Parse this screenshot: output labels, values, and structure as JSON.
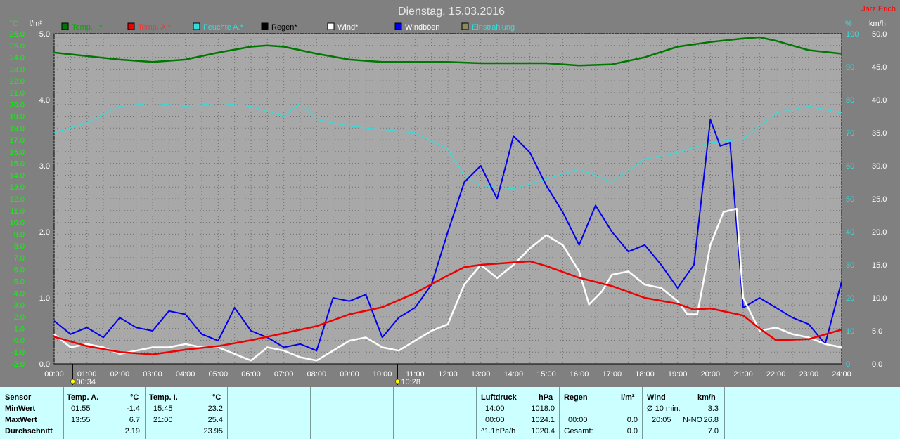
{
  "header": {
    "title": "Dienstag, 15.03.2016",
    "author": "Jarz Erich"
  },
  "legend": [
    {
      "name": "Temp. I.*",
      "color": "#007700",
      "text_color": "#00aa00"
    },
    {
      "name": "Temp. A.*",
      "color": "#ee0000",
      "text_color": "#ff3030"
    },
    {
      "name": "Feuchte A.*",
      "color": "#33dddd",
      "text_color": "#33dddd"
    },
    {
      "name": "Regen*",
      "color": "#000000",
      "text_color": "#000000"
    },
    {
      "name": "Wind*",
      "color": "#ffffff",
      "text_color": "#ffffff"
    },
    {
      "name": "Windböen",
      "color": "#0000ee",
      "text_color": "#ffffff"
    },
    {
      "name": "Einstrahlung",
      "color": "#8b8b5a",
      "text_color": "#33dddd"
    }
  ],
  "axes": {
    "temp_unit": "°C",
    "rain_unit": "l/m²",
    "hum_unit": "%",
    "wind_unit": "km/h",
    "temp_ticks": [
      "26.0",
      "25.0",
      "24.0",
      "23.0",
      "22.0",
      "21.0",
      "20.0",
      "19.0",
      "18.0",
      "17.0",
      "16.0",
      "15.0",
      "14.0",
      "13.0",
      "12.0",
      "11.0",
      "10.0",
      "9.0",
      "8.0",
      "7.0",
      "6.0",
      "5.0",
      "4.0",
      "3.0",
      "2.0",
      "1.0",
      "0.0",
      "-1.0",
      "-2.0"
    ],
    "rain_ticks": [
      "5.0",
      "4.0",
      "3.0",
      "2.0",
      "1.0",
      "0.0"
    ],
    "hum_ticks": [
      "100",
      "90",
      "80",
      "70",
      "60",
      "50",
      "40",
      "30",
      "20",
      "10",
      "0"
    ],
    "wind_ticks": [
      "50.0",
      "45.0",
      "40.0",
      "35.0",
      "30.0",
      "25.0",
      "20.0",
      "15.0",
      "10.0",
      "5.0",
      "0.0"
    ],
    "time_ticks": [
      "00:00",
      "01:00",
      "02:00",
      "03:00",
      "04:00",
      "05:00",
      "06:00",
      "07:00",
      "08:00",
      "09:00",
      "10:00",
      "11:00",
      "12:00",
      "13:00",
      "14:00",
      "15:00",
      "16:00",
      "17:00",
      "18:00",
      "19:00",
      "20:00",
      "21:00",
      "22:00",
      "23:00",
      "24:00"
    ],
    "sunrise": "00:34",
    "sunset": "10:28"
  },
  "chart_data": {
    "type": "line",
    "title": "Dienstag, 15.03.2016",
    "x_unit": "hour of day",
    "xlim": [
      0,
      24
    ],
    "temp_ylim": [
      -2,
      26
    ],
    "rain_ylim": [
      0,
      5
    ],
    "hum_ylim": [
      0,
      100
    ],
    "wind_ylim": [
      0,
      50
    ],
    "grid": true,
    "series": [
      {
        "name": "Temp. I.*",
        "axis": "temp",
        "color": "#007700",
        "x": [
          0,
          1,
          2,
          3,
          4,
          5,
          6,
          6.5,
          7,
          8,
          9,
          10,
          11,
          12,
          13,
          14,
          15,
          16,
          17,
          18,
          19,
          20,
          21,
          21.5,
          22,
          23,
          24
        ],
        "y": [
          24.4,
          24.1,
          23.8,
          23.6,
          23.8,
          24.4,
          24.9,
          25.0,
          24.9,
          24.3,
          23.8,
          23.6,
          23.6,
          23.6,
          23.5,
          23.5,
          23.5,
          23.3,
          23.4,
          24.0,
          24.9,
          25.3,
          25.6,
          25.7,
          25.4,
          24.6,
          24.3
        ]
      },
      {
        "name": "Temp. A.*",
        "axis": "temp",
        "color": "#ee0000",
        "x": [
          0,
          1,
          2,
          3,
          4,
          5,
          6,
          7,
          8,
          9,
          10,
          10.5,
          11,
          12,
          12.5,
          13,
          14,
          14.5,
          15,
          16,
          17,
          18,
          19,
          19.5,
          20,
          21,
          21.5,
          22,
          23,
          24
        ],
        "y": [
          0.3,
          -0.5,
          -1.0,
          -1.2,
          -0.8,
          -0.5,
          0.0,
          0.6,
          1.2,
          2.2,
          2.8,
          3.4,
          4.0,
          5.5,
          6.2,
          6.4,
          6.6,
          6.7,
          6.3,
          5.3,
          4.6,
          3.6,
          3.1,
          2.6,
          2.7,
          2.1,
          1.0,
          0.0,
          0.1,
          0.9
        ]
      },
      {
        "name": "Feuchte A.*",
        "axis": "hum",
        "color": "#33dddd",
        "x": [
          0,
          1,
          2,
          3,
          4,
          5,
          6,
          7,
          7.5,
          8,
          9,
          10,
          11,
          12,
          12.5,
          13,
          14,
          15,
          16,
          17,
          18,
          19,
          20,
          21,
          22,
          23,
          24
        ],
        "y": [
          70,
          73,
          78,
          79,
          78,
          79,
          78,
          75,
          79,
          74,
          72,
          71,
          70,
          65,
          57,
          54,
          53,
          56,
          59,
          55,
          62,
          64,
          67,
          68,
          76,
          78,
          76
        ]
      },
      {
        "name": "Windböen",
        "axis": "wind",
        "color": "#0000ee",
        "x": [
          0,
          0.5,
          1,
          1.5,
          2,
          2.5,
          3,
          3.5,
          4,
          4.5,
          5,
          5.5,
          6,
          6.5,
          7,
          7.5,
          8,
          8.5,
          9,
          9.5,
          10,
          10.5,
          11,
          11.5,
          12,
          12.5,
          13,
          13.5,
          14,
          14.5,
          15,
          15.5,
          16,
          16.5,
          17,
          17.5,
          18,
          18.5,
          19,
          19.5,
          20,
          20.3,
          20.6,
          21,
          21.5,
          22,
          22.5,
          23,
          23.5,
          24
        ],
        "y": [
          6.5,
          4.5,
          5.5,
          4.0,
          7.0,
          5.5,
          5.0,
          8.0,
          7.5,
          4.5,
          3.5,
          8.5,
          5.0,
          4.0,
          2.5,
          3.0,
          2.0,
          10.0,
          9.5,
          10.5,
          4.0,
          7.0,
          8.5,
          12.0,
          20.0,
          27.5,
          30.0,
          25.0,
          34.5,
          32.0,
          27.0,
          23.0,
          18.0,
          24.0,
          20.0,
          17.0,
          18.0,
          15.0,
          11.5,
          15.0,
          37.0,
          33.0,
          33.5,
          8.5,
          10.0,
          8.5,
          7.0,
          6.0,
          3.0,
          12.5
        ]
      },
      {
        "name": "Wind*",
        "axis": "wind",
        "color": "#ffffff",
        "x": [
          0,
          0.5,
          1,
          1.5,
          2,
          2.5,
          3,
          3.5,
          4,
          4.5,
          5,
          5.5,
          6,
          6.5,
          7,
          7.5,
          8,
          8.5,
          9,
          9.5,
          10,
          10.5,
          11,
          11.5,
          12,
          12.5,
          13,
          13.5,
          14,
          14.5,
          15,
          15.5,
          16,
          16.3,
          16.7,
          17,
          17.5,
          18,
          18.5,
          19,
          19.3,
          19.6,
          20,
          20.4,
          20.8,
          21,
          21.5,
          22,
          22.5,
          23,
          23.5,
          24
        ],
        "y": [
          4.5,
          2.5,
          3.0,
          2.5,
          1.5,
          2.0,
          2.5,
          2.5,
          3.0,
          2.5,
          2.5,
          1.5,
          0.5,
          2.5,
          2.0,
          1.0,
          0.5,
          2.0,
          3.5,
          4.0,
          2.5,
          2.0,
          3.5,
          5.0,
          6.0,
          12.0,
          15.0,
          13.0,
          15.0,
          17.5,
          19.5,
          18.0,
          14.0,
          9.0,
          11.0,
          13.5,
          14.0,
          12.0,
          11.5,
          9.5,
          7.5,
          7.5,
          18.0,
          23.0,
          23.5,
          10.0,
          5.0,
          5.5,
          4.5,
          4.0,
          3.0,
          2.5
        ]
      },
      {
        "name": "Einstrahlung",
        "axis": "hum",
        "color": "#8b8b5a",
        "x": [
          0,
          24
        ],
        "y": [
          99,
          99
        ]
      },
      {
        "name": "Regen*",
        "axis": "rain",
        "color": "#000000",
        "x": [
          0,
          24
        ],
        "y": [
          0,
          0
        ]
      }
    ]
  },
  "panel": {
    "sensor": {
      "title": "Sensor",
      "rows": [
        "MinWert",
        "MaxWert",
        "Durchschnitt"
      ]
    },
    "temp_a": {
      "title": "Temp. A.",
      "unit": "°C",
      "rows": [
        {
          "time": "01:55",
          "value": "-1.4"
        },
        {
          "time": "13:55",
          "value": "6.7"
        },
        {
          "time": "",
          "value": "2.19"
        }
      ]
    },
    "temp_i": {
      "title": "Temp. I.",
      "unit": "°C",
      "rows": [
        {
          "time": "15:45",
          "value": "23.2"
        },
        {
          "time": "21:00",
          "value": "25.4"
        },
        {
          "time": "",
          "value": "23.95"
        }
      ]
    },
    "pressure": {
      "title": "Luftdruck",
      "unit": "hPa",
      "rows": [
        {
          "time": "14:00",
          "value": "1018.0"
        },
        {
          "time": "00:00",
          "value": "1024.1"
        },
        {
          "time": "^1.1hPa/h",
          "value": "1020.4"
        }
      ]
    },
    "rain": {
      "title": "Regen",
      "unit": "l/m²",
      "rows": [
        {
          "time": "",
          "value": ""
        },
        {
          "time": "00:00",
          "value": "0.0"
        },
        {
          "time": "Gesamt:",
          "value": "0.0"
        }
      ]
    },
    "wind": {
      "title": "Wind",
      "unit": "km/h",
      "rows": [
        {
          "time": "Ø 10 min.",
          "mid": "",
          "value": "3.3"
        },
        {
          "time": "20:05",
          "mid": "N-NO",
          "value": "26.8"
        },
        {
          "time": "",
          "mid": "",
          "value": "7.0"
        }
      ]
    }
  }
}
